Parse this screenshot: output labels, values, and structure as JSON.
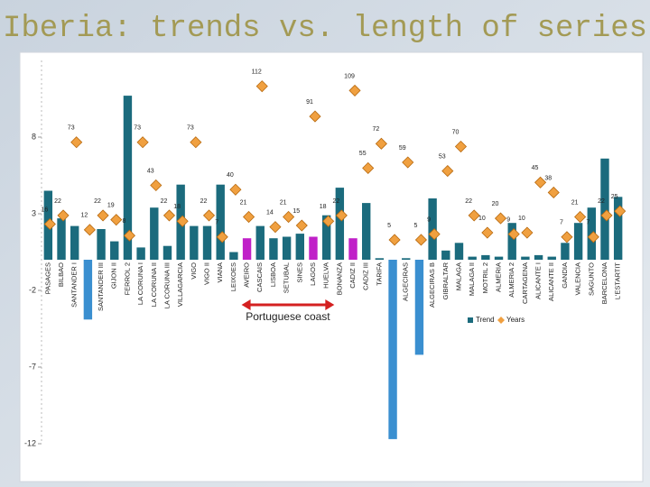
{
  "chart_data": {
    "type": "bar-line",
    "title": "Iberia: trends vs. length of series",
    "annotation": "Portuguese coast",
    "categories": [
      "PASAGES",
      "BILBAO",
      "SANTANDER I",
      "SANTANDER II",
      "SANTANDER III",
      "GIJON II",
      "FERROL 2",
      "LA CORUNA I",
      "LA CORUNA II",
      "LA CORUNA III",
      "VILLAGARCIA",
      "VIGO",
      "VIGO II",
      "VIANA",
      "LEIXOES",
      "AVEIRO",
      "CASCAIS",
      "LISBOA",
      "SETUBAL",
      "SINES",
      "LAGOS",
      "HUELVA",
      "BONANZA",
      "CADIZ II",
      "CADIZ III",
      "TARIFA",
      "TARIFA",
      "ALGECIRAS",
      "ALGECIRAS",
      "ALGECIRAS B",
      "GIBRALTAR",
      "MALAGA",
      "MALAGA II",
      "MOTRIL 2",
      "ALMERIA",
      "ALMERIA 2",
      "CARTAGENA",
      "ALICANTE I",
      "ALICANTE II",
      "GANDIA",
      "VALENCIA",
      "SAGUNTO",
      "BARCELONA",
      "L'ESTARTIT"
    ],
    "series": [
      {
        "name": "Trend",
        "type": "bar",
        "color": "#1b6b7d",
        "colors": [
          "#1b6b7d",
          "#1b6b7d",
          "#1b6b7d",
          "#3a8fd0",
          "#1b6b7d",
          "#1b6b7d",
          "#1b6b7d",
          "#1b6b7d",
          "#1b6b7d",
          "#1b6b7d",
          "#1b6b7d",
          "#1b6b7d",
          "#1b6b7d",
          "#1b6b7d",
          "#1b6b7d",
          "#c020c8",
          "#1b6b7d",
          "#1b6b7d",
          "#1b6b7d",
          "#1b6b7d",
          "#c020c8",
          "#1b6b7d",
          "#1b6b7d",
          "#c020c8",
          "#1b6b7d",
          "#1b6b7d",
          "#3a8fd0",
          "#1b6b7d",
          "#3a8fd0",
          "#1b6b7d",
          "#1b6b7d",
          "#1b6b7d",
          "#1b6b7d",
          "#1b6b7d",
          "#1b6b7d",
          "#1b6b7d",
          "#1b6b7d",
          "#1b6b7d",
          "#1b6b7d",
          "#1b6b7d",
          "#1b6b7d",
          "#1b6b7d",
          "#1b6b7d",
          "#1b6b7d"
        ],
        "values": [
          4.5,
          2.7,
          2.2,
          -3.9,
          2.0,
          1.2,
          10.7,
          0.8,
          3.4,
          0.9,
          4.9,
          2.2,
          2.2,
          4.9,
          0.5,
          1.4,
          2.2,
          1.4,
          1.5,
          1.7,
          1.5,
          2.9,
          4.7,
          1.4,
          3.7,
          0.1,
          -11.7,
          0.1,
          -6.2,
          4.0,
          0.6,
          1.1,
          0.2,
          0.3,
          0.2,
          2.4,
          0.2,
          0.3,
          0.2,
          1.1,
          2.4,
          3.4,
          6.6,
          4.1
        ]
      },
      {
        "name": "Years",
        "type": "line",
        "axis": "y2",
        "color": "#f0a040",
        "values": [
          16,
          22,
          73,
          12,
          22,
          19,
          8,
          73,
          43,
          22,
          18,
          73,
          22,
          7,
          40,
          21,
          112,
          14,
          21,
          15,
          91,
          18,
          22,
          109,
          55,
          72,
          5,
          59,
          5,
          9,
          53,
          70,
          22,
          10,
          20,
          9,
          10,
          45,
          38,
          7,
          21,
          7,
          22,
          25
        ]
      }
    ],
    "ylim": [
      -12,
      13
    ],
    "yticks": [
      -12,
      -7,
      -2,
      3,
      8
    ],
    "y2lim": [
      -137,
      130
    ]
  }
}
